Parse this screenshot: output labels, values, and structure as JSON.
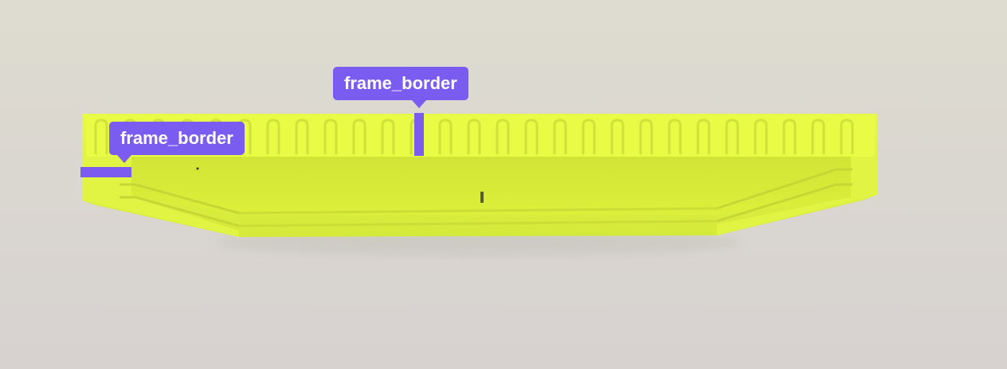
{
  "annotations": [
    {
      "label": "frame_border",
      "color": "#7b5cf0"
    },
    {
      "label": "frame_border",
      "color": "#7b5cf0"
    }
  ],
  "scene": {
    "object": "neon-yellow-frame-top-view",
    "background_color": "#d9d6d0",
    "object_color": "#e4f53a"
  }
}
